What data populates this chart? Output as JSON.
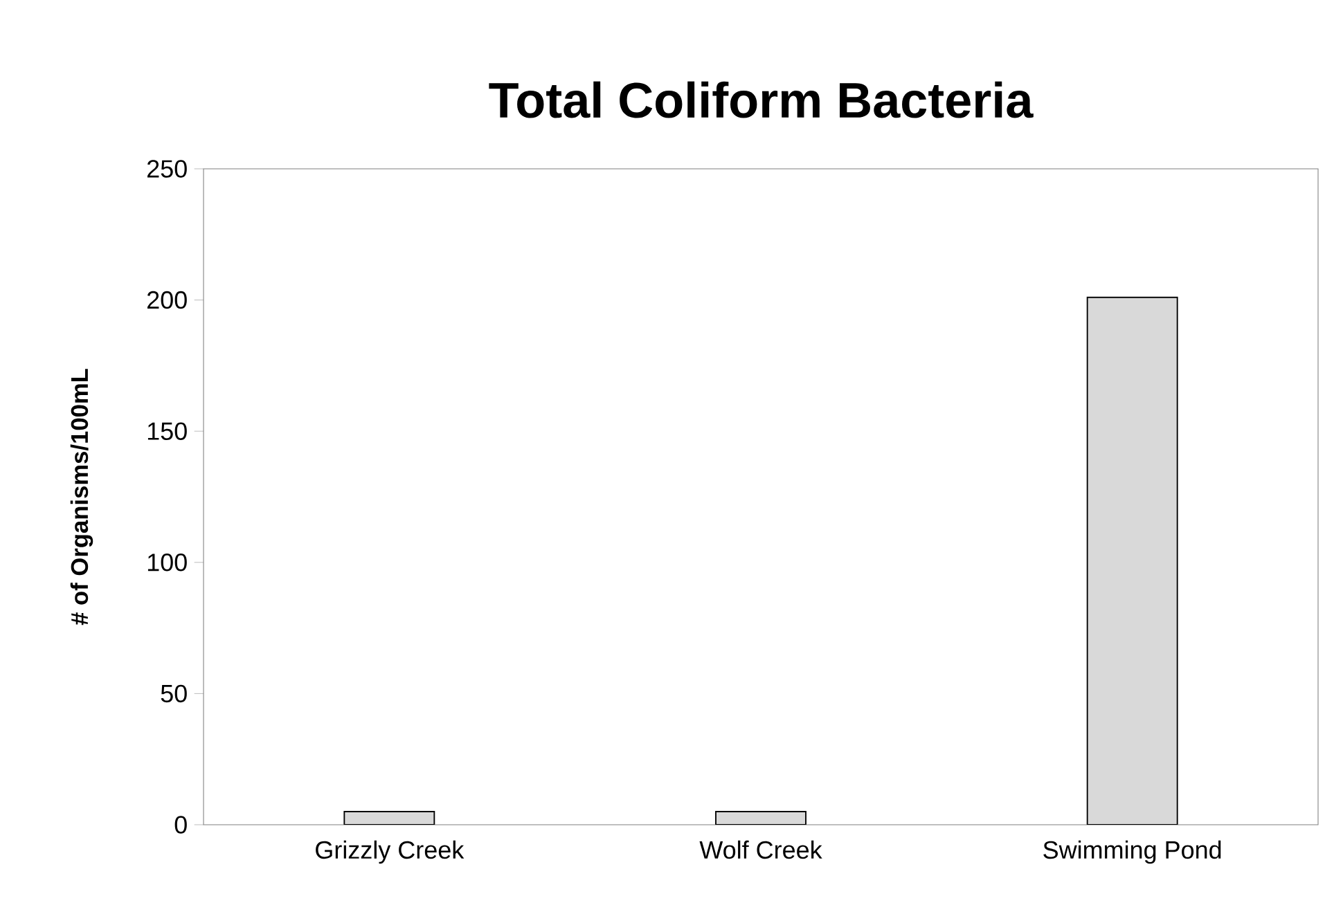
{
  "chart_data": {
    "type": "bar",
    "title": "Total Coliform Bacteria",
    "ylabel": "# of Organisms/100mL",
    "categories": [
      "Grizzly Creek",
      "Wolf Creek",
      "Swimming Pond"
    ],
    "values": [
      5,
      5,
      201
    ],
    "color": "#d9d9d9",
    "ylim": [
      0,
      250
    ],
    "yticks": [
      0,
      50,
      100,
      150,
      200,
      250
    ]
  }
}
